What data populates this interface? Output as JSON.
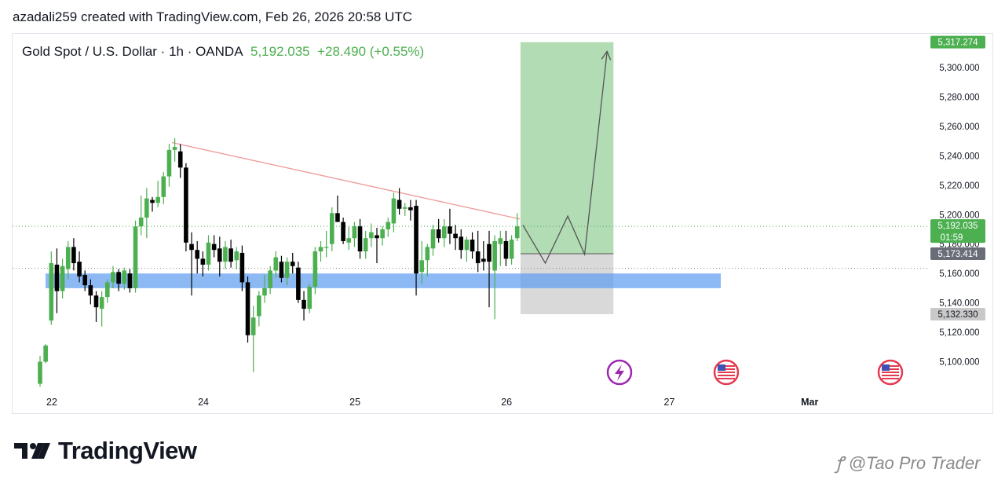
{
  "credit": "azadali259 created with TradingView.com, Feb 26, 2026 20:58 UTC",
  "legend": {
    "symbol": "Gold Spot / U.S. Dollar · 1h · OANDA",
    "price": "5,192.035",
    "change": "+28.490 (+0.55%)"
  },
  "brand": "TradingView",
  "watermark": "@Tao Pro Trader",
  "colors": {
    "up": "#4caf50",
    "down": "#000000",
    "trendline": "#ef9a9a",
    "zone": "#5b9bf0",
    "target_box": "#a5d6a7",
    "stop_box": "#d5d5d5",
    "price_line": "#4caf50"
  },
  "chart_data": {
    "type": "candlestick",
    "symbol": "Gold Spot / U.S. Dollar",
    "interval": "1h",
    "source": "OANDA",
    "ylim": [
      5087,
      5322
    ],
    "y_ticks": [
      "5,100.000",
      "5,120.000",
      "5,140.000",
      "5,160.000",
      "5,180.000",
      "5,200.000",
      "5,220.000",
      "5,240.000",
      "5,260.000",
      "5,280.000",
      "5,300.000"
    ],
    "x_ticks": [
      "22",
      "24",
      "25",
      "26",
      "27",
      "Mar"
    ],
    "x_tick_positions": [
      0,
      27,
      54,
      81,
      110,
      135
    ],
    "last_price": 5192.035,
    "last_price_label": "5,192.035",
    "countdown": "01:59",
    "price_labels": [
      {
        "label": "5,317.274",
        "value": 5317.274,
        "kind": "target"
      },
      {
        "label": "5,173.414",
        "value": 5173.414,
        "kind": "entry"
      },
      {
        "label": "5,132.330",
        "value": 5132.33,
        "kind": "stop"
      }
    ],
    "candles": [
      [
        5085,
        5104,
        5083,
        5100
      ],
      [
        5100,
        5112,
        5099,
        5111
      ],
      [
        5128,
        5175,
        5125,
        5167
      ],
      [
        5166,
        5177,
        5133,
        5148
      ],
      [
        5148,
        5170,
        5143,
        5165
      ],
      [
        5163,
        5182,
        5156,
        5178
      ],
      [
        5178,
        5184,
        5162,
        5167
      ],
      [
        5168,
        5175,
        5154,
        5158
      ],
      [
        5159,
        5162,
        5148,
        5152
      ],
      [
        5152,
        5156,
        5139,
        5145
      ],
      [
        5145,
        5148,
        5127,
        5137
      ],
      [
        5136,
        5148,
        5124,
        5144
      ],
      [
        5144,
        5156,
        5140,
        5154
      ],
      [
        5154,
        5165,
        5150,
        5161
      ],
      [
        5161,
        5163,
        5148,
        5153
      ],
      [
        5153,
        5164,
        5149,
        5162
      ],
      [
        5160,
        5163,
        5147,
        5150
      ],
      [
        5150,
        5196,
        5147,
        5192
      ],
      [
        5192,
        5213,
        5186,
        5198
      ],
      [
        5198,
        5218,
        5184,
        5211
      ],
      [
        5210,
        5212,
        5202,
        5208
      ],
      [
        5208,
        5223,
        5205,
        5212
      ],
      [
        5212,
        5229,
        5207,
        5226
      ],
      [
        5226,
        5248,
        5219,
        5244
      ],
      [
        5244,
        5252,
        5236,
        5246
      ],
      [
        5243,
        5248,
        5225,
        5232
      ],
      [
        5232,
        5235,
        5175,
        5181
      ],
      [
        5180,
        5188,
        5145,
        5176
      ],
      [
        5176,
        5182,
        5160,
        5170
      ],
      [
        5170,
        5175,
        5158,
        5166
      ],
      [
        5166,
        5186,
        5162,
        5181
      ],
      [
        5180,
        5186,
        5171,
        5176
      ],
      [
        5177,
        5185,
        5158,
        5168
      ],
      [
        5168,
        5182,
        5163,
        5178
      ],
      [
        5177,
        5183,
        5164,
        5168
      ],
      [
        5169,
        5178,
        5163,
        5175
      ],
      [
        5174,
        5179,
        5148,
        5154
      ],
      [
        5154,
        5158,
        5113,
        5118
      ],
      [
        5118,
        5138,
        5093,
        5130
      ],
      [
        5131,
        5148,
        5124,
        5145
      ],
      [
        5145,
        5159,
        5140,
        5150
      ],
      [
        5150,
        5165,
        5146,
        5162
      ],
      [
        5162,
        5175,
        5157,
        5171
      ],
      [
        5168,
        5172,
        5154,
        5157
      ],
      [
        5157,
        5171,
        5152,
        5168
      ],
      [
        5168,
        5174,
        5160,
        5165
      ],
      [
        5164,
        5168,
        5140,
        5142
      ],
      [
        5142,
        5148,
        5128,
        5136
      ],
      [
        5136,
        5153,
        5133,
        5151
      ],
      [
        5151,
        5178,
        5146,
        5175
      ],
      [
        5175,
        5182,
        5168,
        5178
      ],
      [
        5178,
        5189,
        5171,
        5178
      ],
      [
        5180,
        5205,
        5175,
        5201
      ],
      [
        5201,
        5213,
        5196,
        5195
      ],
      [
        5195,
        5198,
        5180,
        5182
      ],
      [
        5181,
        5192,
        5176,
        5184
      ],
      [
        5184,
        5195,
        5178,
        5192
      ],
      [
        5192,
        5197,
        5170,
        5175
      ],
      [
        5175,
        5189,
        5170,
        5184
      ],
      [
        5184,
        5194,
        5178,
        5188
      ],
      [
        5186,
        5191,
        5167,
        5184
      ],
      [
        5184,
        5192,
        5179,
        5190
      ],
      [
        5190,
        5198,
        5185,
        5195
      ],
      [
        5194,
        5215,
        5188,
        5211
      ],
      [
        5210,
        5218,
        5200,
        5204
      ],
      [
        5204,
        5208,
        5199,
        5205
      ],
      [
        5205,
        5210,
        5196,
        5203
      ],
      [
        5206,
        5210,
        5145,
        5160
      ],
      [
        5161,
        5182,
        5153,
        5169
      ],
      [
        5169,
        5180,
        5158,
        5178
      ],
      [
        5177,
        5193,
        5172,
        5190
      ],
      [
        5190,
        5197,
        5181,
        5184
      ],
      [
        5184,
        5197,
        5178,
        5192
      ],
      [
        5192,
        5204,
        5180,
        5187
      ],
      [
        5187,
        5193,
        5176,
        5184
      ],
      [
        5185,
        5190,
        5170,
        5176
      ],
      [
        5176,
        5185,
        5168,
        5183
      ],
      [
        5183,
        5188,
        5170,
        5175
      ],
      [
        5175,
        5189,
        5161,
        5167
      ],
      [
        5170,
        5182,
        5162,
        5168
      ],
      [
        5180,
        5189,
        5137,
        5168
      ],
      [
        5162,
        5186,
        5129,
        5182
      ],
      [
        5180,
        5189,
        5165,
        5184
      ],
      [
        5182,
        5189,
        5165,
        5170
      ],
      [
        5170,
        5186,
        5166,
        5183
      ],
      [
        5184,
        5201,
        5182,
        5192
      ]
    ],
    "support_zone": {
      "from": 5150,
      "to": 5160
    },
    "trendline": {
      "from": {
        "index": 23.5,
        "value": 5249
      },
      "to": {
        "index": 85.5,
        "value": 5197
      }
    },
    "long_position": {
      "entry": 5173.414,
      "target": 5317.274,
      "stop": 5132.33,
      "from_index": 86,
      "to_index": 102
    },
    "projection": [
      {
        "index": 86,
        "value": 5193
      },
      {
        "index": 90,
        "value": 5167
      },
      {
        "index": 94,
        "value": 5199
      },
      {
        "index": 97,
        "value": 5173
      },
      {
        "index": 101,
        "value": 5311
      }
    ]
  }
}
